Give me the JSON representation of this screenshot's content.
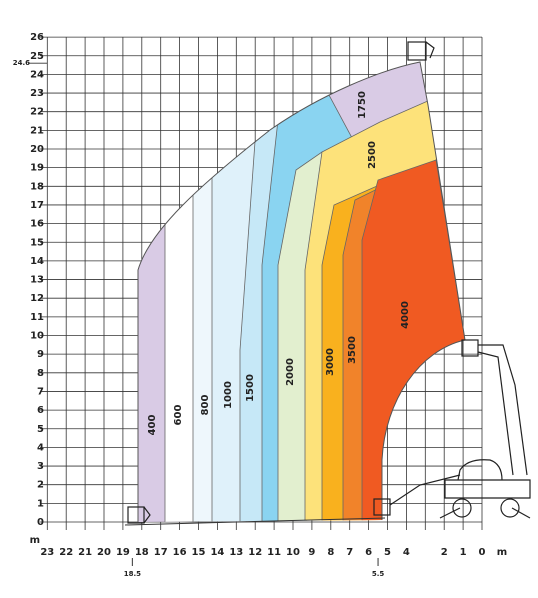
{
  "y_axis": {
    "ticks": [
      0,
      1,
      2,
      3,
      4,
      5,
      6,
      7,
      8,
      9,
      10,
      11,
      12,
      13,
      14,
      15,
      16,
      17,
      18,
      19,
      20,
      21,
      22,
      23,
      24,
      25,
      26
    ],
    "unit": "m",
    "marker": {
      "value": 24.6,
      "label": "24.6"
    }
  },
  "x_axis": {
    "ticks": [
      23,
      22,
      21,
      20,
      19,
      18,
      17,
      16,
      15,
      14,
      13,
      12,
      11,
      10,
      9,
      8,
      7,
      6,
      5,
      4,
      2,
      1,
      0
    ],
    "unit": "m",
    "markers": [
      {
        "value": 18.5,
        "label": "18.5"
      },
      {
        "value": 5.5,
        "label": "5.5"
      }
    ]
  },
  "zones": [
    {
      "label": "400",
      "color": "#d9cbe5"
    },
    {
      "label": "600",
      "color": "#ffffff"
    },
    {
      "label": "800",
      "color": "#eef7fc"
    },
    {
      "label": "1000",
      "color": "#dff1fa"
    },
    {
      "label": "1500",
      "color": "#c6e8f7"
    },
    {
      "label": "1750",
      "color": "#8ad4f1"
    },
    {
      "label": "2000",
      "color": "#e2efcf"
    },
    {
      "label": "2500",
      "color": "#fde27a"
    },
    {
      "label": "3000",
      "color": "#f9b11e"
    },
    {
      "label": "3500",
      "color": "#f1832a"
    },
    {
      "label": "4000",
      "color": "#f05a22"
    }
  ]
}
